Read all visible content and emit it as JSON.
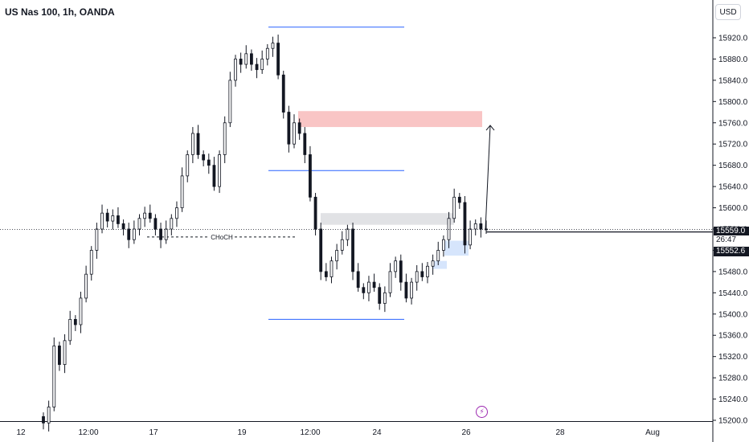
{
  "title": "US Nas 100, 1h, OANDA",
  "currency_button": "USD",
  "price_labels": {
    "last": "15559.0",
    "countdown": "26:47",
    "prev": "15552.6"
  },
  "annotation_choch": "CHoCH",
  "event_icon": "lightning-icon",
  "chart_data": {
    "type": "candlestick",
    "title": "US Nas 100, 1h, OANDA",
    "y_ticks": [
      15200,
      15240,
      15280,
      15320,
      15360,
      15400,
      15440,
      15480,
      15520,
      15560,
      15600,
      15640,
      15680,
      15720,
      15760,
      15800,
      15840,
      15880,
      15920
    ],
    "y_tick_labels": [
      "15200.0",
      "15240.0",
      "15280.0",
      "15320.0",
      "15360.0",
      "15400.0",
      "15440.0",
      "15480.0",
      "15520.0",
      "15560.0",
      "15600.0",
      "15640.0",
      "15680.0",
      "15720.0",
      "15760.0",
      "15800.0",
      "15840.0",
      "15880.0",
      "15920.0"
    ],
    "ylim": [
      15195,
      15955
    ],
    "x_ticks": [
      "12",
      "12:00",
      "17",
      "19",
      "12:00",
      "24",
      "26",
      "28",
      "Aug"
    ],
    "last_price": 15559.0,
    "colors": {
      "candle": "#131722",
      "line": "#2962ff",
      "supply": "#f8bbbb",
      "neutral": "#dcdde0",
      "demand": "#cfe1fb"
    },
    "closes": [
      15195,
      15225,
      15340,
      15305,
      15350,
      15390,
      15380,
      15430,
      15475,
      15520,
      15560,
      15590,
      15575,
      15585,
      15570,
      15560,
      15540,
      15560,
      15580,
      15590,
      15580,
      15560,
      15540,
      15560,
      15580,
      15600,
      15660,
      15700,
      15740,
      15700,
      15690,
      15680,
      15640,
      15700,
      15760,
      15840,
      15880,
      15870,
      15890,
      15870,
      15860,
      15880,
      15900,
      15910,
      15850,
      15780,
      15720,
      15760,
      15740,
      15700,
      15620,
      15560,
      15480,
      15470,
      15500,
      15520,
      15540,
      15560,
      15480,
      15450,
      15440,
      15460,
      15450,
      15420,
      15440,
      15480,
      15500,
      15460,
      15430,
      15460,
      15480,
      15470,
      15490,
      15500,
      15520,
      15540,
      15580,
      15620,
      15610,
      15530,
      15560,
      15570,
      15560,
      15559
    ],
    "levels": [
      {
        "price": 15940,
        "x0": 334,
        "x1": 503
      },
      {
        "price": 15670,
        "x0": 334,
        "x1": 503
      },
      {
        "price": 15390,
        "x0": 334,
        "x1": 503
      }
    ],
    "zones": [
      {
        "kind": "supply",
        "top": 15782,
        "bottom": 15752,
        "x0": 371,
        "x1": 600
      },
      {
        "kind": "neutral",
        "top": 15590,
        "bottom": 15568,
        "x0": 399,
        "x1": 565
      },
      {
        "kind": "demand",
        "top": 15538,
        "bottom": 15510,
        "x0": 553,
        "x1": 583
      },
      {
        "kind": "demand",
        "top": 15500,
        "bottom": 15485,
        "x0": 538,
        "x1": 556
      }
    ],
    "choch_price": 15545,
    "arrow": {
      "from": 15559,
      "to": 15755
    }
  }
}
